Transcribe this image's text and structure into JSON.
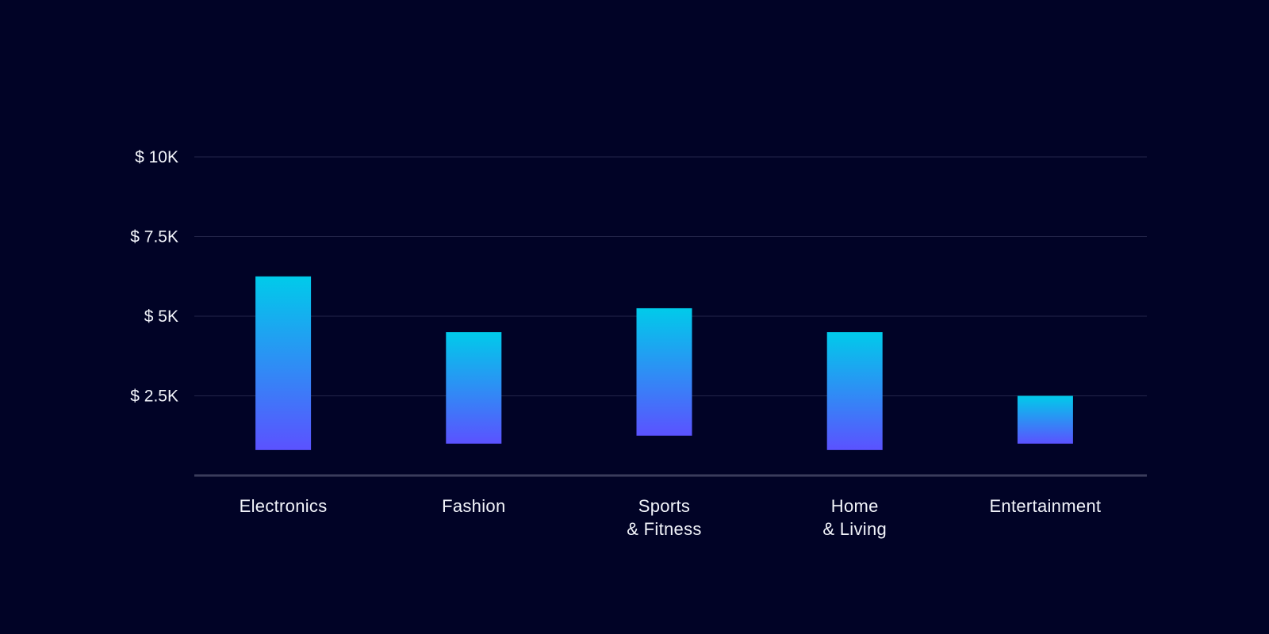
{
  "theme": {
    "background": "#010326",
    "gridline": "#24264A",
    "baseline": "#3A3C5C",
    "bar_top": "#00CBEA",
    "bar_bottom": "#5B52FF",
    "text": "#F2F4FA"
  },
  "chart_data": {
    "type": "bar",
    "subtype": "floating-range",
    "title": "",
    "xlabel": "",
    "ylabel": "",
    "ylim": [
      0,
      10000
    ],
    "y_ticks": [
      {
        "value": 2500,
        "label": "$ 2.5K"
      },
      {
        "value": 5000,
        "label": "$ 5K"
      },
      {
        "value": 7500,
        "label": "$ 7.5K"
      },
      {
        "value": 10000,
        "label": "$ 10K"
      }
    ],
    "grid": true,
    "legend": "none",
    "categories": [
      {
        "label_lines": [
          "Electronics"
        ],
        "low": 800,
        "high": 6250
      },
      {
        "label_lines": [
          "Fashion"
        ],
        "low": 1000,
        "high": 4500
      },
      {
        "label_lines": [
          "Sports",
          "& Fitness"
        ],
        "low": 1250,
        "high": 5250
      },
      {
        "label_lines": [
          "Home",
          "& Living"
        ],
        "low": 800,
        "high": 4500
      },
      {
        "label_lines": [
          "Entertainment"
        ],
        "low": 1000,
        "high": 2500
      }
    ]
  }
}
